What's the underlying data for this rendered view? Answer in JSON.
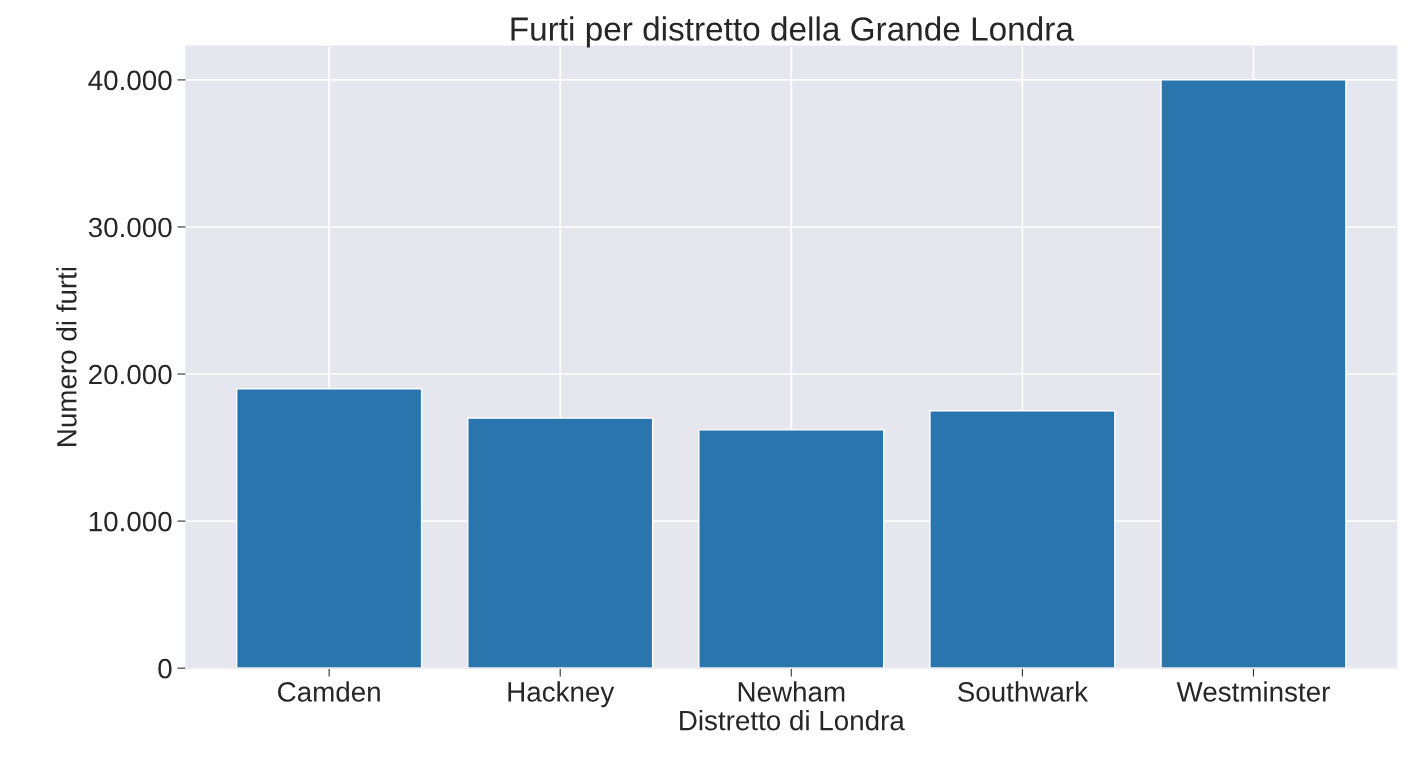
{
  "chart_data": {
    "type": "bar",
    "title": "Furti per distretto della Grande Londra",
    "xlabel": "Distretto di Londra",
    "ylabel": "Numero di furti",
    "categories": [
      "Camden",
      "Hackney",
      "Newham",
      "Southwark",
      "Westminster"
    ],
    "values": [
      19000,
      17000,
      16200,
      17500,
      40000
    ],
    "color": "#2a75ad",
    "ylim": [
      0,
      42300
    ],
    "yticks": [
      {
        "value": 0,
        "label": "0"
      },
      {
        "value": 10000,
        "label": "10.000"
      },
      {
        "value": 20000,
        "label": "20.000"
      },
      {
        "value": 30000,
        "label": "30.000"
      },
      {
        "value": 40000,
        "label": "40.000"
      }
    ],
    "grid": true
  }
}
